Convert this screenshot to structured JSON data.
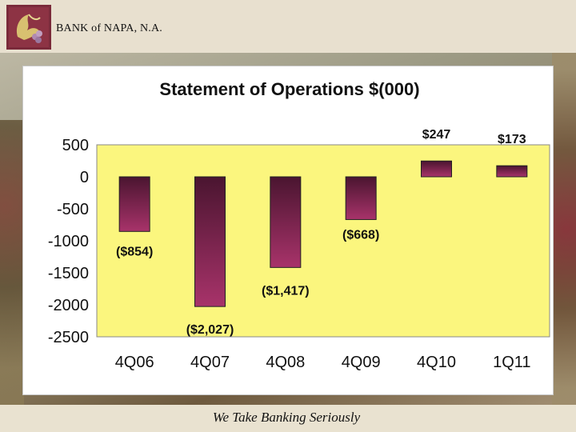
{
  "header": {
    "bank_name": "BANK of NAPA, N.A."
  },
  "footer": {
    "tagline": "We Take Banking Seriously"
  },
  "colors": {
    "plot_bg": "#fbf67e",
    "bar_dark": "#4a1530",
    "bar_light": "#a8336a"
  },
  "chart_data": {
    "type": "bar",
    "title": "Statement of Operations $(000)",
    "categories": [
      "4Q06",
      "4Q07",
      "4Q08",
      "4Q09",
      "4Q10",
      "1Q11"
    ],
    "values": [
      -854,
      -2027,
      -1417,
      -668,
      247,
      173
    ],
    "data_labels": [
      "($854)",
      "($2,027)",
      "($1,417)",
      "($668)",
      "$247",
      "$173"
    ],
    "yticks": [
      "500",
      "0",
      "-500",
      "-1000",
      "-1500",
      "-2000",
      "-2500"
    ],
    "ylim": [
      -2500,
      500
    ],
    "grid": false,
    "legend": "none"
  }
}
